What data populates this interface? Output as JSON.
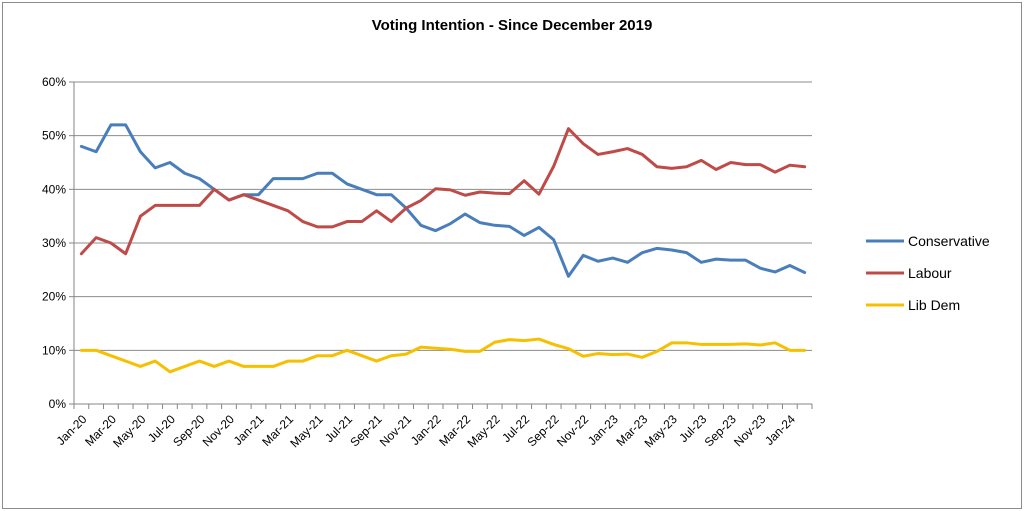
{
  "chart_data": {
    "type": "line",
    "title": "Voting Intention - Since December 2019",
    "xlabel": "",
    "ylabel": "",
    "ylim": [
      0,
      60
    ],
    "y_ticks": [
      "0%",
      "10%",
      "20%",
      "30%",
      "40%",
      "50%",
      "60%"
    ],
    "x_tick_labels": [
      "Jan-20",
      "Mar-20",
      "May-20",
      "Jul-20",
      "Sep-20",
      "Nov-20",
      "Jan-21",
      "Mar-21",
      "May-21",
      "Jul-21",
      "Sep-21",
      "Nov-21",
      "Jan-22",
      "Mar-22",
      "May-22",
      "Jul-22",
      "Sep-22",
      "Nov-22",
      "Jan-23",
      "Mar-23",
      "May-23",
      "Jul-23",
      "Sep-23",
      "Nov-23",
      "Jan-24"
    ],
    "grid": "horizontal",
    "legend_position": "right",
    "series": [
      {
        "name": "Conservative",
        "color": "#4a7ebb",
        "values": [
          48,
          47,
          52,
          52,
          47,
          44,
          45,
          43,
          42,
          40,
          38,
          39,
          39,
          42,
          42,
          42,
          43,
          43,
          41,
          40,
          39,
          39,
          36.5,
          33.3,
          32.3,
          33.6,
          35.4,
          33.8,
          33.3,
          33.1,
          31.4,
          32.9,
          30.6,
          23.8,
          27.7,
          26.6,
          27.2,
          26.4,
          28.2,
          29,
          28.7,
          28.2,
          26.4,
          27,
          26.8,
          26.8,
          25.3,
          24.6,
          25.8,
          24.5
        ]
      },
      {
        "name": "Labour",
        "color": "#be4b48",
        "values": [
          28,
          31,
          30,
          28,
          35,
          37,
          37,
          37,
          37,
          40,
          38,
          39,
          38,
          37,
          36,
          34,
          33,
          33,
          34,
          34,
          36,
          34,
          36.5,
          37.9,
          40.1,
          39.9,
          38.9,
          39.5,
          39.3,
          39.2,
          41.6,
          39.1,
          44.3,
          51.3,
          48.5,
          46.5,
          47,
          47.6,
          46.5,
          44.2,
          43.9,
          44.2,
          45.4,
          43.7,
          45,
          44.6,
          44.6,
          43.2,
          44.5,
          44.2
        ]
      },
      {
        "name": "Lib Dem",
        "color": "#f6c000",
        "values": [
          10,
          10,
          9,
          8,
          7,
          8,
          6,
          7,
          8,
          7,
          8,
          7,
          7,
          7,
          8,
          8,
          9,
          9,
          10,
          9,
          8,
          9,
          9.3,
          10.6,
          10.4,
          10.2,
          9.8,
          9.8,
          11.5,
          12,
          11.8,
          12.1,
          11.1,
          10.3,
          8.9,
          9.4,
          9.2,
          9.3,
          8.7,
          9.8,
          11.4,
          11.4,
          11.1,
          11.1,
          11.1,
          11.2,
          11,
          11.4,
          10,
          10
        ]
      }
    ]
  }
}
